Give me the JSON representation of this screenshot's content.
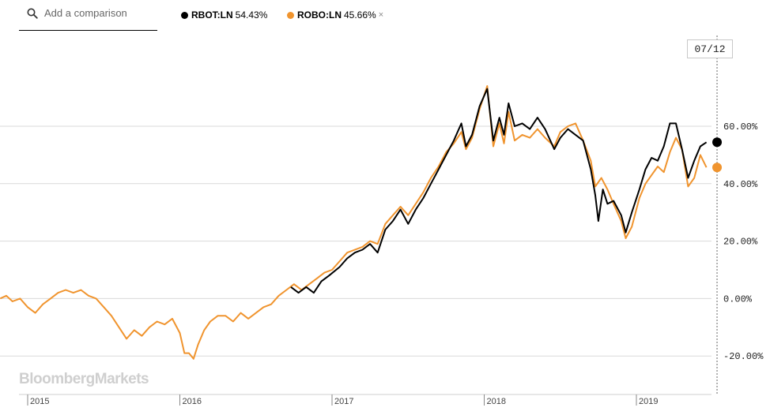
{
  "search": {
    "placeholder": "Add a comparison"
  },
  "legend": [
    {
      "ticker": "RBOT:LN",
      "value": "54.43%",
      "color": "#000000",
      "removable": false
    },
    {
      "ticker": "ROBO:LN",
      "value": "45.66%",
      "color": "#f0942e",
      "removable": true,
      "remove_glyph": "×"
    }
  ],
  "hover_date": "07/12",
  "watermark": "BloombergMarkets",
  "chart_data": {
    "type": "line",
    "xlabel": "",
    "ylabel": "",
    "xlim": [
      2014.82,
      2019.52
    ],
    "ylim": [
      -25,
      78
    ],
    "y_ticks": [
      {
        "value": 60,
        "label": "60.00%"
      },
      {
        "value": 40,
        "label": "40.00%"
      },
      {
        "value": 20,
        "label": "20.00%"
      },
      {
        "value": 0,
        "label": "0.00%"
      },
      {
        "value": -20,
        "label": "-20.00%"
      }
    ],
    "x_ticks": [
      {
        "value": 2015.0,
        "label": "2015"
      },
      {
        "value": 2016.0,
        "label": "2016"
      },
      {
        "value": 2017.0,
        "label": "2017"
      },
      {
        "value": 2018.0,
        "label": "2018"
      },
      {
        "value": 2019.0,
        "label": "2019"
      }
    ],
    "grid": true,
    "series": [
      {
        "name": "RBOT:LN",
        "color": "#000000",
        "end_label": "54.43%",
        "points": [
          [
            2016.73,
            4
          ],
          [
            2016.78,
            2
          ],
          [
            2016.83,
            4
          ],
          [
            2016.88,
            2
          ],
          [
            2016.93,
            6
          ],
          [
            2016.98,
            8
          ],
          [
            2017.05,
            11
          ],
          [
            2017.1,
            14
          ],
          [
            2017.15,
            16
          ],
          [
            2017.2,
            17
          ],
          [
            2017.25,
            19
          ],
          [
            2017.3,
            16
          ],
          [
            2017.35,
            24
          ],
          [
            2017.4,
            27
          ],
          [
            2017.45,
            31
          ],
          [
            2017.5,
            26
          ],
          [
            2017.55,
            31
          ],
          [
            2017.6,
            35
          ],
          [
            2017.65,
            40
          ],
          [
            2017.7,
            45
          ],
          [
            2017.75,
            50
          ],
          [
            2017.8,
            55
          ],
          [
            2017.85,
            61
          ],
          [
            2017.88,
            53
          ],
          [
            2017.92,
            57
          ],
          [
            2017.97,
            67
          ],
          [
            2018.02,
            73
          ],
          [
            2018.06,
            55
          ],
          [
            2018.1,
            63
          ],
          [
            2018.13,
            57
          ],
          [
            2018.16,
            68
          ],
          [
            2018.2,
            60
          ],
          [
            2018.25,
            61
          ],
          [
            2018.3,
            59
          ],
          [
            2018.35,
            63
          ],
          [
            2018.4,
            59
          ],
          [
            2018.46,
            52
          ],
          [
            2018.5,
            56
          ],
          [
            2018.55,
            59
          ],
          [
            2018.6,
            57
          ],
          [
            2018.65,
            55
          ],
          [
            2018.7,
            45
          ],
          [
            2018.73,
            36
          ],
          [
            2018.75,
            27
          ],
          [
            2018.78,
            38
          ],
          [
            2018.81,
            33
          ],
          [
            2018.85,
            34
          ],
          [
            2018.9,
            29
          ],
          [
            2018.93,
            23
          ],
          [
            2018.97,
            30
          ],
          [
            2019.02,
            38
          ],
          [
            2019.06,
            45
          ],
          [
            2019.1,
            49
          ],
          [
            2019.14,
            48
          ],
          [
            2019.18,
            53
          ],
          [
            2019.22,
            61
          ],
          [
            2019.26,
            61
          ],
          [
            2019.3,
            52
          ],
          [
            2019.34,
            42
          ],
          [
            2019.38,
            48
          ],
          [
            2019.42,
            53
          ],
          [
            2019.46,
            54.43
          ]
        ]
      },
      {
        "name": "ROBO:LN",
        "color": "#f0942e",
        "end_label": "45.66%",
        "points": [
          [
            2014.82,
            0
          ],
          [
            2014.86,
            1
          ],
          [
            2014.9,
            -1
          ],
          [
            2014.95,
            0
          ],
          [
            2015.0,
            -3
          ],
          [
            2015.05,
            -5
          ],
          [
            2015.1,
            -2
          ],
          [
            2015.15,
            0
          ],
          [
            2015.2,
            2
          ],
          [
            2015.25,
            3
          ],
          [
            2015.3,
            2
          ],
          [
            2015.35,
            3
          ],
          [
            2015.4,
            1
          ],
          [
            2015.45,
            0
          ],
          [
            2015.5,
            -3
          ],
          [
            2015.55,
            -6
          ],
          [
            2015.6,
            -10
          ],
          [
            2015.65,
            -14
          ],
          [
            2015.7,
            -11
          ],
          [
            2015.75,
            -13
          ],
          [
            2015.8,
            -10
          ],
          [
            2015.85,
            -8
          ],
          [
            2015.9,
            -9
          ],
          [
            2015.95,
            -7
          ],
          [
            2016.0,
            -12
          ],
          [
            2016.03,
            -19
          ],
          [
            2016.06,
            -19
          ],
          [
            2016.09,
            -21
          ],
          [
            2016.12,
            -16
          ],
          [
            2016.16,
            -11
          ],
          [
            2016.2,
            -8
          ],
          [
            2016.25,
            -6
          ],
          [
            2016.3,
            -6
          ],
          [
            2016.35,
            -8
          ],
          [
            2016.4,
            -5
          ],
          [
            2016.45,
            -7
          ],
          [
            2016.5,
            -5
          ],
          [
            2016.55,
            -3
          ],
          [
            2016.6,
            -2
          ],
          [
            2016.65,
            1
          ],
          [
            2016.7,
            3
          ],
          [
            2016.75,
            5
          ],
          [
            2016.8,
            3
          ],
          [
            2016.85,
            5
          ],
          [
            2016.9,
            7
          ],
          [
            2016.95,
            9
          ],
          [
            2017.0,
            10
          ],
          [
            2017.05,
            13
          ],
          [
            2017.1,
            16
          ],
          [
            2017.15,
            17
          ],
          [
            2017.2,
            18
          ],
          [
            2017.25,
            20
          ],
          [
            2017.3,
            19
          ],
          [
            2017.35,
            26
          ],
          [
            2017.4,
            29
          ],
          [
            2017.45,
            32
          ],
          [
            2017.5,
            29
          ],
          [
            2017.55,
            33
          ],
          [
            2017.6,
            37
          ],
          [
            2017.65,
            42
          ],
          [
            2017.7,
            46
          ],
          [
            2017.75,
            51
          ],
          [
            2017.8,
            54
          ],
          [
            2017.85,
            58
          ],
          [
            2017.88,
            52
          ],
          [
            2017.92,
            56
          ],
          [
            2017.97,
            66
          ],
          [
            2018.02,
            74
          ],
          [
            2018.06,
            53
          ],
          [
            2018.1,
            61
          ],
          [
            2018.13,
            54
          ],
          [
            2018.16,
            65
          ],
          [
            2018.2,
            55
          ],
          [
            2018.25,
            57
          ],
          [
            2018.3,
            56
          ],
          [
            2018.35,
            59
          ],
          [
            2018.4,
            56
          ],
          [
            2018.46,
            53
          ],
          [
            2018.5,
            58
          ],
          [
            2018.55,
            60
          ],
          [
            2018.6,
            61
          ],
          [
            2018.65,
            55
          ],
          [
            2018.7,
            48
          ],
          [
            2018.73,
            39
          ],
          [
            2018.77,
            42
          ],
          [
            2018.81,
            38
          ],
          [
            2018.85,
            33
          ],
          [
            2018.9,
            27
          ],
          [
            2018.93,
            21
          ],
          [
            2018.97,
            25
          ],
          [
            2019.02,
            35
          ],
          [
            2019.06,
            40
          ],
          [
            2019.1,
            43
          ],
          [
            2019.14,
            46
          ],
          [
            2019.18,
            44
          ],
          [
            2019.22,
            51
          ],
          [
            2019.26,
            56
          ],
          [
            2019.3,
            52
          ],
          [
            2019.34,
            39
          ],
          [
            2019.38,
            42
          ],
          [
            2019.42,
            50
          ],
          [
            2019.46,
            45.66
          ]
        ]
      }
    ]
  }
}
